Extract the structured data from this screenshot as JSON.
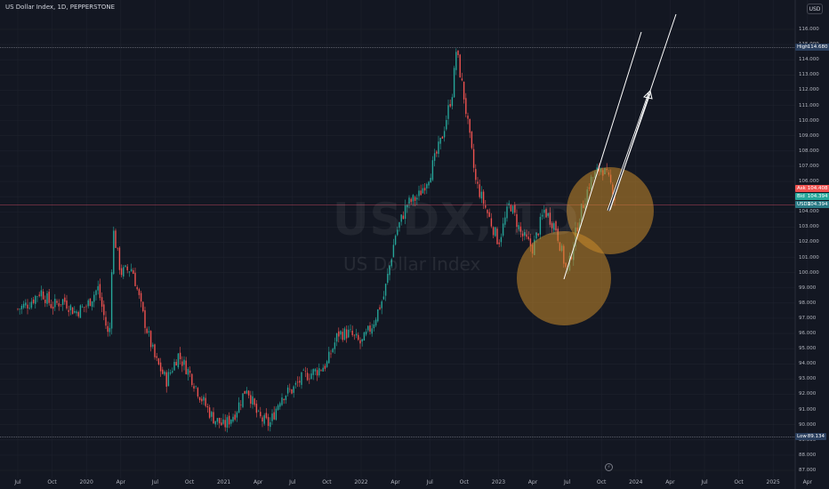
{
  "header": {
    "title": "US Dollar Index, 1D, PEPPERSTONE",
    "currency": "USD"
  },
  "watermark": {
    "symbol": "USDX, 1D",
    "name": "US Dollar Index"
  },
  "price_tags": {
    "high": {
      "label": "High",
      "value": "114.680"
    },
    "ask": {
      "label": "Ask",
      "value": "104.408"
    },
    "bid": {
      "label": "Bid",
      "value": "104.394"
    },
    "last": {
      "label": "USDX",
      "value": "104.394"
    },
    "low": {
      "label": "Low",
      "value": "89.134"
    }
  },
  "colors": {
    "background": "#131722",
    "up": "#26a69a",
    "down": "#ef5350",
    "ask": "#ef5350",
    "bid": "#26a69a",
    "last": "#2a7a85",
    "circle": "#c98a2a"
  },
  "chart_data": {
    "type": "candlestick",
    "symbol": "USDX",
    "timeframe": "1D",
    "x_ticks": [
      "Jul",
      "Oct",
      "2020",
      "Apr",
      "Jul",
      "Oct",
      "2021",
      "Apr",
      "Jul",
      "Oct",
      "2022",
      "Apr",
      "Jul",
      "Oct",
      "2023",
      "Apr",
      "Jul",
      "Oct",
      "2024",
      "Apr",
      "Jul",
      "Oct",
      "2025",
      "Apr"
    ],
    "y_ticks": [
      87,
      88,
      89,
      90,
      91,
      92,
      93,
      94,
      95,
      96,
      97,
      98,
      99,
      100,
      101,
      102,
      103,
      104,
      105,
      106,
      107,
      108,
      109,
      110,
      111,
      112,
      113,
      114,
      115,
      116
    ],
    "ylim": [
      86.7,
      117
    ],
    "price_path": [
      [
        "Jul 2019",
        97.6
      ],
      [
        "Aug 2019",
        98.0
      ],
      [
        "Sep 2019",
        98.8
      ],
      [
        "Oct 2019",
        97.8
      ],
      [
        "Nov 2019",
        98.2
      ],
      [
        "Dec 2019",
        97.4
      ],
      [
        "Jan 2020",
        97.8
      ],
      [
        "Feb 2020",
        99.0
      ],
      [
        "Mar 2020",
        95.5
      ],
      [
        "Mar 2020",
        102.9
      ],
      [
        "Apr 2020",
        100.0
      ],
      [
        "May 2020",
        100.3
      ],
      [
        "Jun 2020",
        97.0
      ],
      [
        "Jul 2020",
        94.3
      ],
      [
        "Aug 2020",
        92.9
      ],
      [
        "Sep 2020",
        94.6
      ],
      [
        "Oct 2020",
        93.4
      ],
      [
        "Nov 2020",
        91.8
      ],
      [
        "Dec 2020",
        90.5
      ],
      [
        "Jan 2021",
        89.9
      ],
      [
        "Feb 2021",
        90.8
      ],
      [
        "Mar 2021",
        92.5
      ],
      [
        "Apr 2021",
        90.5
      ],
      [
        "May 2021",
        90.0
      ],
      [
        "Jun 2021",
        91.9
      ],
      [
        "Jul 2021",
        92.3
      ],
      [
        "Aug 2021",
        93.2
      ],
      [
        "Sep 2021",
        93.5
      ],
      [
        "Oct 2021",
        94.0
      ],
      [
        "Nov 2021",
        96.0
      ],
      [
        "Dec 2021",
        96.0
      ],
      [
        "Jan 2022",
        95.3
      ],
      [
        "Feb 2022",
        96.6
      ],
      [
        "Mar 2022",
        98.5
      ],
      [
        "Apr 2022",
        102.5
      ],
      [
        "May 2022",
        104.5
      ],
      [
        "Jun 2022",
        105.0
      ],
      [
        "Jul 2022",
        106.5
      ],
      [
        "Aug 2022",
        108.7
      ],
      [
        "Sep 2022",
        112.0
      ],
      [
        "Sep 2022",
        114.68
      ],
      [
        "Oct 2022",
        111.5
      ],
      [
        "Nov 2022",
        106.0
      ],
      [
        "Dec 2022",
        104.0
      ],
      [
        "Jan 2023",
        102.0
      ],
      [
        "Feb 2023",
        104.6
      ],
      [
        "Mar 2023",
        102.5
      ],
      [
        "Apr 2023",
        101.6
      ],
      [
        "May 2023",
        104.1
      ],
      [
        "Jun 2023",
        103.0
      ],
      [
        "Jul 2023",
        99.9
      ],
      [
        "Aug 2023",
        103.5
      ],
      [
        "Sep 2023",
        106.0
      ],
      [
        "Oct 2023",
        107.0
      ],
      [
        "Nov 2023",
        105.5
      ],
      [
        "Nov 2023",
        104.39
      ]
    ],
    "high": 114.68,
    "low": 89.134,
    "last": 104.394,
    "annotations": [
      {
        "type": "circle",
        "name": "lower-highlight"
      },
      {
        "type": "circle",
        "name": "upper-highlight"
      },
      {
        "type": "arrow",
        "name": "trend-arrow-1"
      },
      {
        "type": "arrow",
        "name": "trend-arrow-2"
      }
    ]
  }
}
